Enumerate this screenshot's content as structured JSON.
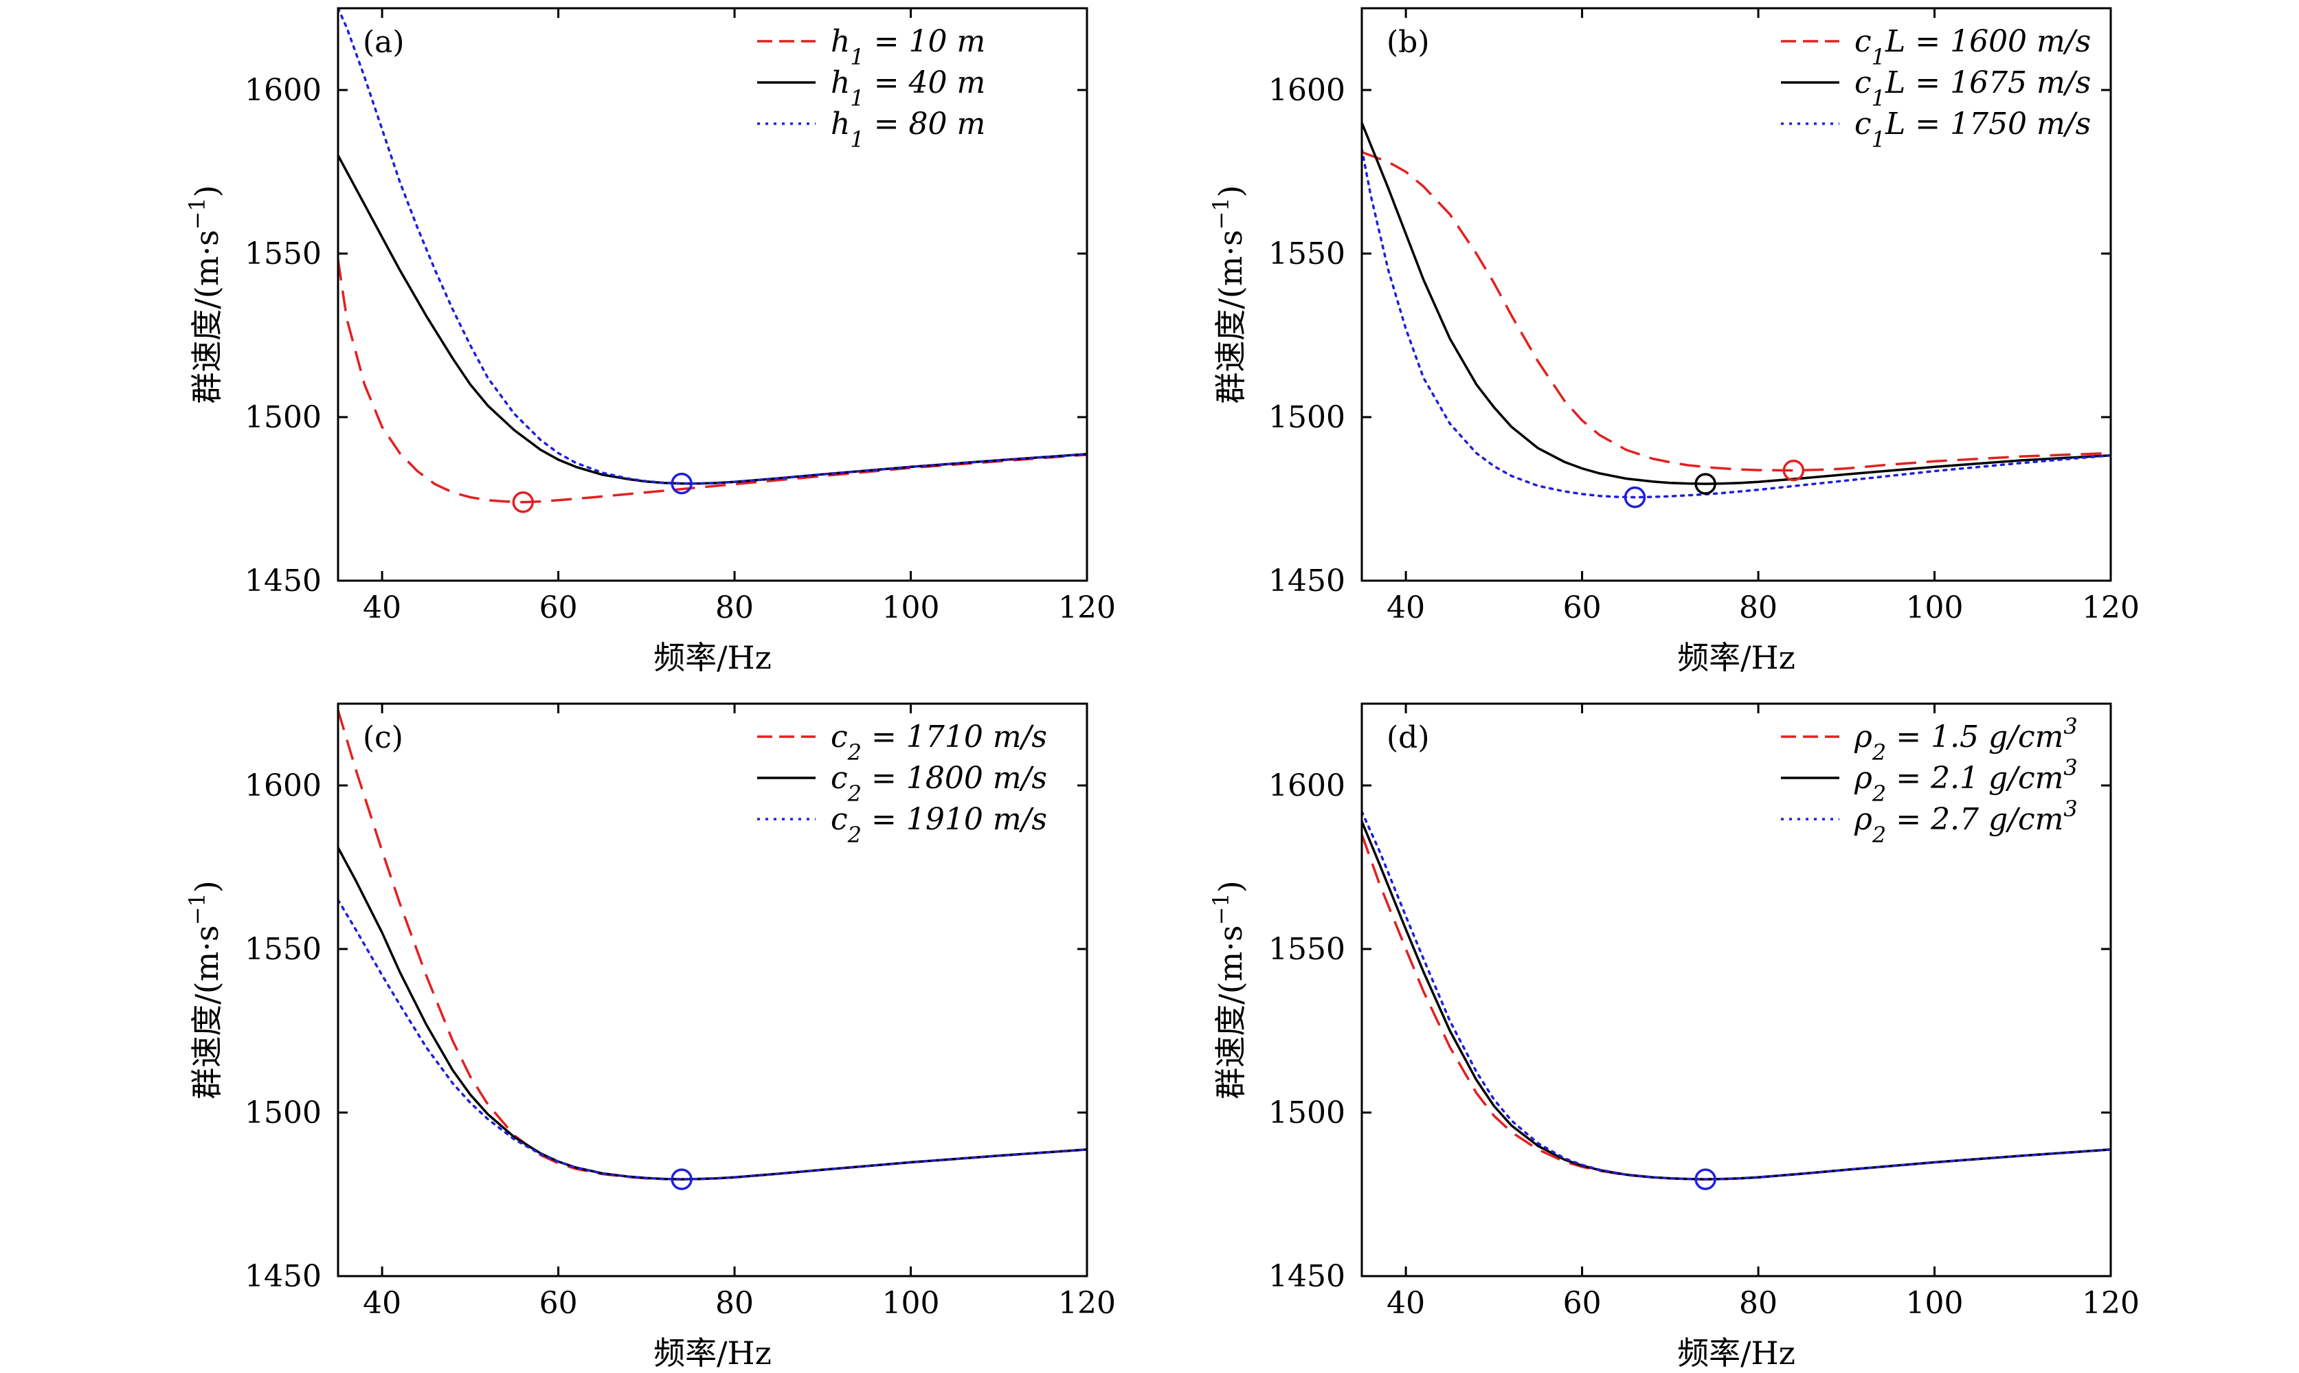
{
  "colors": {
    "red": "#e32020",
    "black": "#000000",
    "blue": "#1f1fdd"
  },
  "chart_data": [
    {
      "type": "line",
      "panel_label": "(a)",
      "xlabel": "频率/Hz",
      "ylabel": "群速度/(m·s⁻¹)",
      "xlim": [
        35,
        120
      ],
      "ylim": [
        1450,
        1625
      ],
      "xticks": [
        40,
        60,
        80,
        100,
        120
      ],
      "yticks": [
        1450,
        1500,
        1550,
        1600
      ],
      "legend_position": "top-right",
      "series": [
        {
          "name": "h₁ = 10 m",
          "color": "#e32020",
          "style": "dashed",
          "x": [
            35,
            36,
            38,
            40,
            42,
            44,
            46,
            48,
            50,
            52,
            54,
            56,
            58,
            60,
            64,
            68,
            72,
            76,
            80,
            90,
            100,
            110,
            120
          ],
          "y": [
            1548,
            1530,
            1510,
            1497,
            1489,
            1483.5,
            1479.5,
            1477,
            1475.5,
            1474.6,
            1474.2,
            1474,
            1474.2,
            1474.6,
            1475.5,
            1476.5,
            1477.5,
            1478.5,
            1479.5,
            1482,
            1484.5,
            1486.5,
            1488.5
          ]
        },
        {
          "name": "h₁ = 40 m",
          "color": "#000000",
          "style": "solid",
          "x": [
            35,
            38,
            40,
            42,
            45,
            48,
            50,
            52,
            55,
            58,
            60,
            62,
            65,
            68,
            70,
            72,
            74,
            76,
            78,
            80,
            85,
            90,
            100,
            110,
            120
          ],
          "y": [
            1580,
            1565,
            1555,
            1545,
            1531,
            1518,
            1510,
            1503.5,
            1496,
            1490,
            1487,
            1484.8,
            1482.4,
            1481,
            1480.3,
            1479.9,
            1479.7,
            1479.7,
            1479.9,
            1480.2,
            1481.3,
            1482.5,
            1484.8,
            1486.8,
            1488.7
          ]
        },
        {
          "name": "h₁ = 80 m",
          "color": "#1f1fdd",
          "style": "dotted",
          "x": [
            35,
            36,
            38,
            40,
            42,
            44,
            46,
            48,
            50,
            52,
            55,
            58,
            60,
            62,
            65,
            68,
            70,
            72,
            74,
            76,
            78,
            80,
            85,
            90,
            100,
            110,
            120
          ],
          "y": [
            1625,
            1619,
            1604,
            1588,
            1572,
            1558,
            1545,
            1533,
            1522,
            1512,
            1501,
            1493,
            1489,
            1486,
            1483,
            1481.2,
            1480.4,
            1479.9,
            1479.7,
            1479.7,
            1479.9,
            1480.2,
            1481.3,
            1482.5,
            1484.8,
            1486.8,
            1488.7
          ]
        }
      ],
      "markers": [
        {
          "x": 56,
          "y": 1474,
          "color": "#e32020"
        },
        {
          "x": 74,
          "y": 1479.7,
          "color": "#1f1fdd"
        }
      ]
    },
    {
      "type": "line",
      "panel_label": "(b)",
      "xlabel": "频率/Hz",
      "ylabel": "群速度/(m·s⁻¹)",
      "xlim": [
        35,
        120
      ],
      "ylim": [
        1450,
        1625
      ],
      "xticks": [
        40,
        60,
        80,
        100,
        120
      ],
      "yticks": [
        1450,
        1500,
        1550,
        1600
      ],
      "legend_position": "top-right",
      "series": [
        {
          "name": "c₁L = 1600 m/s",
          "color": "#e32020",
          "style": "dashed",
          "x": [
            35,
            38,
            40,
            42,
            45,
            48,
            50,
            52,
            55,
            58,
            60,
            62,
            65,
            68,
            70,
            72,
            75,
            78,
            80,
            84,
            88,
            90,
            95,
            100,
            110,
            120
          ],
          "y": [
            1581,
            1578,
            1575,
            1570.5,
            1562,
            1550,
            1541,
            1531,
            1517,
            1505,
            1499,
            1494.5,
            1490,
            1487.3,
            1486.2,
            1485.3,
            1484.5,
            1484,
            1483.8,
            1483.7,
            1484,
            1484.3,
            1485.5,
            1486.5,
            1488,
            1489
          ]
        },
        {
          "name": "c₁L = 1675 m/s",
          "color": "#000000",
          "style": "solid",
          "x": [
            35,
            38,
            40,
            42,
            45,
            48,
            50,
            52,
            55,
            58,
            60,
            62,
            65,
            68,
            70,
            72,
            74,
            76,
            78,
            80,
            85,
            90,
            100,
            110,
            120
          ],
          "y": [
            1590,
            1570,
            1556,
            1542,
            1524,
            1510,
            1503,
            1497,
            1490.5,
            1486.3,
            1484.3,
            1482.8,
            1481.2,
            1480.3,
            1479.9,
            1479.7,
            1479.6,
            1479.7,
            1479.9,
            1480.2,
            1481.3,
            1482.5,
            1484.8,
            1486.8,
            1488.3
          ]
        },
        {
          "name": "c₁L = 1750 m/s",
          "color": "#1f1fdd",
          "style": "dotted",
          "x": [
            35,
            36,
            38,
            40,
            42,
            45,
            48,
            50,
            52,
            55,
            58,
            60,
            62,
            64,
            66,
            68,
            70,
            72,
            74,
            76,
            80,
            90,
            100,
            110,
            120
          ],
          "y": [
            1582,
            1568,
            1545,
            1527,
            1512,
            1498,
            1489,
            1485,
            1482,
            1479,
            1477.3,
            1476.5,
            1475.9,
            1475.6,
            1475.5,
            1475.6,
            1475.8,
            1476.1,
            1476.4,
            1476.8,
            1477.8,
            1480.6,
            1483.5,
            1486,
            1488.3
          ]
        }
      ],
      "markers": [
        {
          "x": 84,
          "y": 1483.7,
          "color": "#e32020"
        },
        {
          "x": 74,
          "y": 1479.6,
          "color": "#000000"
        },
        {
          "x": 66,
          "y": 1475.5,
          "color": "#1f1fdd"
        }
      ]
    },
    {
      "type": "line",
      "panel_label": "(c)",
      "xlabel": "频率/Hz",
      "ylabel": "群速度/(m·s⁻¹)",
      "xlim": [
        35,
        120
      ],
      "ylim": [
        1450,
        1625
      ],
      "xticks": [
        40,
        60,
        80,
        100,
        120
      ],
      "yticks": [
        1450,
        1500,
        1550,
        1600
      ],
      "legend_position": "top-right",
      "series": [
        {
          "name": "c₂ = 1710 m/s",
          "color": "#e32020",
          "style": "dashed",
          "x": [
            35,
            37,
            40,
            42,
            45,
            48,
            50,
            52,
            55,
            58,
            60,
            62,
            65,
            68,
            70,
            72,
            74,
            76,
            78,
            80,
            85,
            90,
            100,
            110,
            120
          ],
          "y": [
            1623,
            1605,
            1580,
            1564,
            1542,
            1522,
            1511,
            1502.5,
            1493,
            1487,
            1484.5,
            1482.8,
            1481.2,
            1480.3,
            1479.9,
            1479.7,
            1479.6,
            1479.7,
            1479.9,
            1480.2,
            1481.3,
            1482.5,
            1484.8,
            1486.8,
            1488.7
          ]
        },
        {
          "name": "c₂ = 1800 m/s",
          "color": "#000000",
          "style": "solid",
          "x": [
            35,
            37,
            40,
            42,
            45,
            48,
            50,
            52,
            55,
            58,
            60,
            62,
            65,
            68,
            70,
            72,
            74,
            76,
            78,
            80,
            85,
            90,
            100,
            110,
            120
          ],
          "y": [
            1581,
            1571,
            1555,
            1543,
            1527,
            1513,
            1505.5,
            1499.5,
            1492.5,
            1487.5,
            1485,
            1483.2,
            1481.4,
            1480.4,
            1480,
            1479.7,
            1479.6,
            1479.7,
            1479.9,
            1480.2,
            1481.3,
            1482.5,
            1484.8,
            1486.8,
            1488.7
          ]
        },
        {
          "name": "c₂ = 1910 m/s",
          "color": "#1f1fdd",
          "style": "dotted",
          "x": [
            35,
            37,
            40,
            42,
            45,
            48,
            50,
            52,
            55,
            58,
            60,
            62,
            65,
            68,
            70,
            72,
            74,
            76,
            78,
            80,
            85,
            90,
            100,
            110,
            120
          ],
          "y": [
            1565,
            1556,
            1542,
            1533,
            1520,
            1509,
            1503,
            1498,
            1491.8,
            1487.3,
            1485,
            1483.2,
            1481.4,
            1480.4,
            1480,
            1479.7,
            1479.6,
            1479.7,
            1479.9,
            1480.2,
            1481.3,
            1482.5,
            1484.8,
            1486.8,
            1488.7
          ]
        }
      ],
      "markers": [
        {
          "x": 74,
          "y": 1479.6,
          "color": "#1f1fdd"
        }
      ]
    },
    {
      "type": "line",
      "panel_label": "(d)",
      "xlabel": "频率/Hz",
      "ylabel": "群速度/(m·s⁻¹)",
      "xlim": [
        35,
        120
      ],
      "ylim": [
        1450,
        1625
      ],
      "xticks": [
        40,
        60,
        80,
        100,
        120
      ],
      "yticks": [
        1450,
        1500,
        1550,
        1600
      ],
      "legend_position": "top-right",
      "series": [
        {
          "name": "ρ₂ = 1.5 g/cm³",
          "color": "#e32020",
          "style": "dashed",
          "x": [
            35,
            37,
            40,
            42,
            45,
            48,
            50,
            52,
            55,
            58,
            60,
            62,
            65,
            68,
            70,
            72,
            74,
            76,
            78,
            80,
            85,
            90,
            100,
            110,
            120
          ],
          "y": [
            1585,
            1570,
            1550,
            1537,
            1520,
            1506,
            1499,
            1494,
            1488.7,
            1485,
            1483.4,
            1482.2,
            1480.9,
            1480.2,
            1479.9,
            1479.7,
            1479.6,
            1479.7,
            1479.9,
            1480.2,
            1481.3,
            1482.5,
            1484.8,
            1486.8,
            1488.7
          ]
        },
        {
          "name": "ρ₂ = 2.1 g/cm³",
          "color": "#000000",
          "style": "solid",
          "x": [
            35,
            37,
            40,
            42,
            45,
            48,
            50,
            52,
            55,
            58,
            60,
            62,
            65,
            68,
            70,
            72,
            74,
            76,
            78,
            80,
            85,
            90,
            100,
            110,
            120
          ],
          "y": [
            1589,
            1576,
            1556,
            1543,
            1525,
            1510,
            1502,
            1496,
            1489.8,
            1485.6,
            1483.8,
            1482.4,
            1481,
            1480.2,
            1479.9,
            1479.7,
            1479.6,
            1479.7,
            1479.9,
            1480.2,
            1481.3,
            1482.5,
            1484.8,
            1486.8,
            1488.7
          ]
        },
        {
          "name": "ρ₂ = 2.7 g/cm³",
          "color": "#1f1fdd",
          "style": "dotted",
          "x": [
            35,
            37,
            40,
            42,
            45,
            48,
            50,
            52,
            55,
            58,
            60,
            62,
            65,
            68,
            70,
            72,
            74,
            76,
            78,
            80,
            85,
            90,
            100,
            110,
            120
          ],
          "y": [
            1592,
            1580,
            1560,
            1547,
            1528,
            1512.5,
            1504,
            1497.5,
            1490.6,
            1486,
            1484,
            1482.5,
            1481,
            1480.2,
            1479.9,
            1479.7,
            1479.6,
            1479.7,
            1479.9,
            1480.2,
            1481.3,
            1482.5,
            1484.8,
            1486.8,
            1488.7
          ]
        }
      ],
      "markers": [
        {
          "x": 74,
          "y": 1479.6,
          "color": "#1f1fdd"
        }
      ]
    }
  ]
}
